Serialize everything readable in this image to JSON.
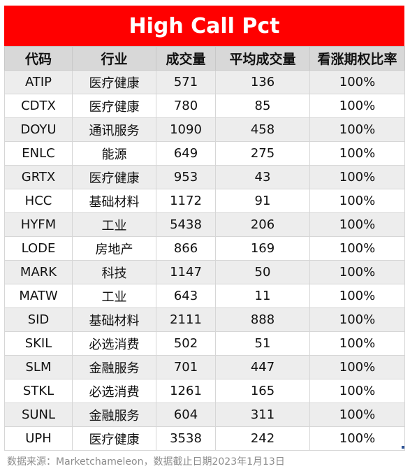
{
  "title": "High Call Pct",
  "headers": [
    "代码",
    "行业",
    "成交量",
    "平均成交量",
    "看涨期权比率"
  ],
  "rows": [
    [
      "ATIP",
      "医疗健康",
      "571",
      "136",
      "100%"
    ],
    [
      "CDTX",
      "医疗健康",
      "780",
      "85",
      "100%"
    ],
    [
      "DOYU",
      "通讯服务",
      "1090",
      "458",
      "100%"
    ],
    [
      "ENLC",
      "能源",
      "649",
      "275",
      "100%"
    ],
    [
      "GRTX",
      "医疗健康",
      "953",
      "43",
      "100%"
    ],
    [
      "HCC",
      "基础材料",
      "1172",
      "91",
      "100%"
    ],
    [
      "HYFM",
      "工业",
      "5438",
      "206",
      "100%"
    ],
    [
      "LODE",
      "房地产",
      "866",
      "169",
      "100%"
    ],
    [
      "MARK",
      "科技",
      "1147",
      "50",
      "100%"
    ],
    [
      "MATW",
      "工业",
      "643",
      "11",
      "100%"
    ],
    [
      "SID",
      "基础材料",
      "2111",
      "888",
      "100%"
    ],
    [
      "SKIL",
      "必选消费",
      "502",
      "51",
      "100%"
    ],
    [
      "SLM",
      "金融服务",
      "701",
      "447",
      "100%"
    ],
    [
      "STKL",
      "必选消费",
      "1261",
      "165",
      "100%"
    ],
    [
      "SUNL",
      "金融服务",
      "604",
      "311",
      "100%"
    ],
    [
      "UPH",
      "医疗健康",
      "3538",
      "242",
      "100%"
    ]
  ],
  "footer": "数据来源：Marketchameleon，数据截止日期2023年1月13日",
  "colors": {
    "title_bg": "#ff0000",
    "header_bg": "#d8d8d8",
    "stripe": "#ededed"
  }
}
